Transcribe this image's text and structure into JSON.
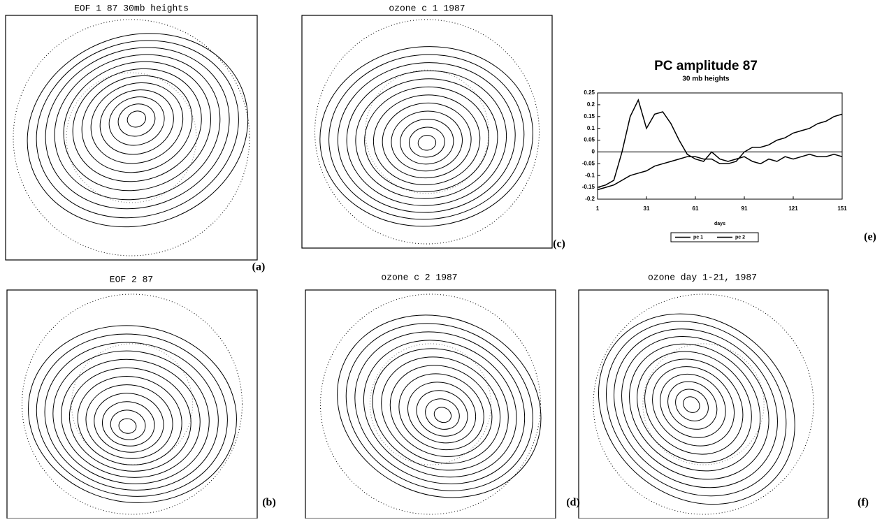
{
  "panels": [
    {
      "title": "EOF 1 87 30mb heights",
      "label": "(a)"
    },
    {
      "title": "ozone c 1 1987",
      "label": "(c)"
    },
    {
      "title": "EOF 2 87",
      "label": "(b)"
    },
    {
      "title": "ozone c 2 1987",
      "label": "(d)"
    },
    {
      "title": "ozone day 1-21, 1987",
      "label": "(f)"
    }
  ],
  "chart_data": {
    "type": "line",
    "title": "PC amplitude 87",
    "subtitle": "30 mb heights",
    "x_label": "days",
    "panel_label": "(e)",
    "x": [
      1,
      6,
      11,
      16,
      21,
      26,
      31,
      36,
      41,
      46,
      51,
      56,
      61,
      66,
      71,
      76,
      81,
      86,
      91,
      96,
      101,
      106,
      111,
      116,
      121,
      126,
      131,
      136,
      141,
      146,
      151
    ],
    "series": [
      {
        "name": "pc 1",
        "color": "#000000",
        "values": [
          -0.15,
          -0.14,
          -0.12,
          0.0,
          0.15,
          0.22,
          0.1,
          0.16,
          0.17,
          0.12,
          0.05,
          -0.01,
          -0.03,
          -0.04,
          0.0,
          -0.03,
          -0.04,
          -0.03,
          -0.02,
          -0.04,
          -0.05,
          -0.03,
          -0.04,
          -0.02,
          -0.03,
          -0.02,
          -0.01,
          -0.02,
          -0.02,
          -0.01,
          -0.02
        ]
      },
      {
        "name": "pc 2",
        "color": "#000000",
        "values": [
          -0.16,
          -0.15,
          -0.14,
          -0.12,
          -0.1,
          -0.09,
          -0.08,
          -0.06,
          -0.05,
          -0.04,
          -0.03,
          -0.02,
          -0.02,
          -0.03,
          -0.03,
          -0.05,
          -0.05,
          -0.04,
          0.0,
          0.02,
          0.02,
          0.03,
          0.05,
          0.06,
          0.08,
          0.09,
          0.1,
          0.12,
          0.13,
          0.15,
          0.16
        ]
      }
    ],
    "xlim": [
      1,
      151
    ],
    "xticks": [
      1,
      31,
      61,
      91,
      121,
      151
    ],
    "ylim": [
      -0.2,
      0.25
    ],
    "yticks": [
      -0.2,
      -0.15,
      -0.1,
      -0.05,
      0,
      0.05,
      0.1,
      0.15,
      0.2,
      0.25
    ]
  }
}
